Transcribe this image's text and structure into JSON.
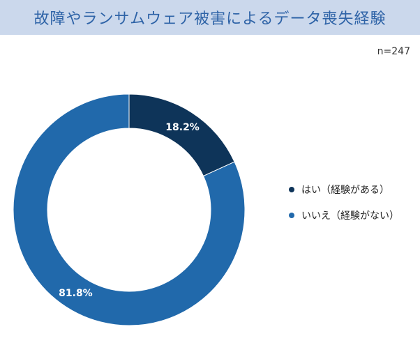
{
  "header": {
    "title": "故障やランサムウェア被害によるデータ喪失経験",
    "background": "#cbd8ec",
    "title_color": "#2e63a7"
  },
  "sample_size": "n=247",
  "chart_data": {
    "type": "pie",
    "style": "donut",
    "title": "故障やランサムウェア被害によるデータ喪失経験",
    "categories": [
      "はい（経験がある）",
      "いいえ（経験がない）"
    ],
    "values": [
      18.2,
      81.8
    ],
    "labels": [
      "18.2%",
      "81.8%"
    ],
    "colors": [
      "#0e3459",
      "#2169ab"
    ],
    "legend_position": "right"
  }
}
